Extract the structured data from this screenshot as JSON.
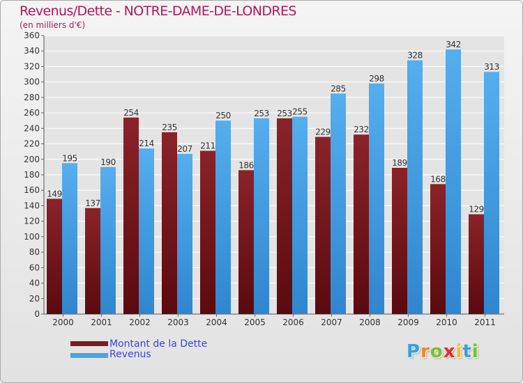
{
  "title": "Revenus/Dette - NOTRE-DAME-DE-LONDRES",
  "subtitle": "(en milliers d'€)",
  "colors": {
    "title": "#b0175a",
    "legend_text": "#3b44e0",
    "dette": "#7b1c22",
    "revenus": "#4aa3e6"
  },
  "chart_data": {
    "type": "bar",
    "title": "Revenus/Dette - NOTRE-DAME-DE-LONDRES",
    "subtitle": "(en milliers d'€)",
    "xlabel": "",
    "ylabel": "",
    "categories": [
      "2000",
      "2001",
      "2002",
      "2003",
      "2004",
      "2005",
      "2006",
      "2007",
      "2008",
      "2009",
      "2010",
      "2011"
    ],
    "series": [
      {
        "name": "Montant de la Dette",
        "color": "#7b1c22",
        "values": [
          149,
          137,
          254,
          235,
          211,
          186,
          253,
          229,
          232,
          189,
          168,
          129
        ]
      },
      {
        "name": "Revenus",
        "color": "#4aa3e6",
        "values": [
          195,
          190,
          214,
          207,
          250,
          253,
          255,
          285,
          298,
          328,
          342,
          313
        ]
      }
    ],
    "ylim": [
      0,
      360
    ],
    "yticks": [
      0,
      20,
      40,
      60,
      80,
      100,
      120,
      140,
      160,
      180,
      200,
      220,
      240,
      260,
      280,
      300,
      320,
      340,
      360
    ],
    "grid": true,
    "legend_position": "bottom-left"
  },
  "legend": [
    {
      "label": "Montant de la Dette",
      "color": "#7b1c22"
    },
    {
      "label": "Revenus",
      "color": "#4aa3e6"
    }
  ],
  "logo": {
    "letters": [
      "P",
      "r",
      "o",
      "x",
      "i",
      "t",
      "i"
    ],
    "colors": [
      "#3aa0d8",
      "#f08a1c",
      "#7bbf2a",
      "#e8292f",
      "#f2c01e",
      "#3aa0d8",
      "#7bbf2a"
    ]
  }
}
